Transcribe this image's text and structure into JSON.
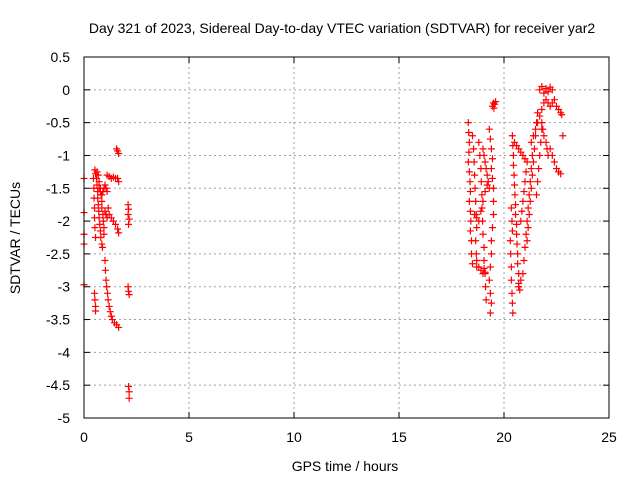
{
  "chart_data": {
    "type": "scatter",
    "title": "Day 321 of 2023, Sidereal Day-to-day VTEC variation (SDTVAR) for receiver yar2",
    "xlabel": "GPS time / hours",
    "ylabel": "SDTVAR / TECUs",
    "xlim": [
      0,
      25
    ],
    "ylim": [
      -5,
      0.5
    ],
    "xticks": [
      0,
      5,
      10,
      15,
      20,
      25
    ],
    "yticks": [
      0.5,
      0,
      -0.5,
      -1,
      -1.5,
      -2,
      -2.5,
      -3,
      -3.5,
      -4,
      -4.5,
      -5
    ],
    "grid": true,
    "marker": "plus",
    "color": "#ff0000",
    "series": [
      {
        "name": "SDTVAR",
        "points": [
          [
            0.0,
            -1.35
          ],
          [
            0.0,
            -1.87
          ],
          [
            0.0,
            -2.2
          ],
          [
            0.0,
            -2.35
          ],
          [
            0.0,
            -2.97
          ],
          [
            0.45,
            -1.35
          ],
          [
            0.47,
            -1.5
          ],
          [
            0.48,
            -1.65
          ],
          [
            0.5,
            -1.8
          ],
          [
            0.5,
            -1.95
          ],
          [
            0.52,
            -2.1
          ],
          [
            0.55,
            -2.25
          ],
          [
            0.5,
            -3.1
          ],
          [
            0.52,
            -3.2
          ],
          [
            0.55,
            -3.3
          ],
          [
            0.55,
            -3.37
          ],
          [
            0.52,
            -1.22
          ],
          [
            0.55,
            -1.28
          ],
          [
            0.6,
            -1.35
          ],
          [
            0.62,
            -1.45
          ],
          [
            0.65,
            -1.55
          ],
          [
            0.65,
            -1.65
          ],
          [
            0.68,
            -1.75
          ],
          [
            0.7,
            -1.85
          ],
          [
            0.72,
            -1.95
          ],
          [
            0.75,
            -2.05
          ],
          [
            0.78,
            -2.15
          ],
          [
            0.8,
            -2.25
          ],
          [
            0.85,
            -2.35
          ],
          [
            0.88,
            -2.4
          ],
          [
            0.62,
            -1.25
          ],
          [
            0.68,
            -1.3
          ],
          [
            0.72,
            -1.4
          ],
          [
            0.78,
            -1.5
          ],
          [
            0.82,
            -1.6
          ],
          [
            0.85,
            -1.7
          ],
          [
            0.85,
            -1.8
          ],
          [
            0.9,
            -1.9
          ],
          [
            0.92,
            -2.0
          ],
          [
            0.95,
            -2.1
          ],
          [
            0.95,
            -2.2
          ],
          [
            0.72,
            -1.5
          ],
          [
            0.78,
            -1.55
          ],
          [
            0.85,
            -1.6
          ],
          [
            0.9,
            -1.55
          ],
          [
            0.95,
            -1.5
          ],
          [
            1.0,
            -1.45
          ],
          [
            1.05,
            -1.5
          ],
          [
            1.1,
            -1.55
          ],
          [
            1.0,
            -2.6
          ],
          [
            1.02,
            -2.75
          ],
          [
            1.05,
            -2.9
          ],
          [
            1.08,
            -3.0
          ],
          [
            1.12,
            -3.1
          ],
          [
            1.15,
            -3.2
          ],
          [
            1.2,
            -3.3
          ],
          [
            1.25,
            -3.38
          ],
          [
            1.3,
            -3.45
          ],
          [
            1.35,
            -3.5
          ],
          [
            1.45,
            -3.55
          ],
          [
            1.55,
            -3.58
          ],
          [
            1.65,
            -3.62
          ],
          [
            1.1,
            -1.3
          ],
          [
            1.2,
            -1.32
          ],
          [
            1.3,
            -1.35
          ],
          [
            1.4,
            -1.33
          ],
          [
            1.5,
            -1.35
          ],
          [
            1.6,
            -1.35
          ],
          [
            1.65,
            -1.4
          ],
          [
            1.15,
            -1.8
          ],
          [
            1.2,
            -1.9
          ],
          [
            1.3,
            -1.95
          ],
          [
            1.4,
            -2.0
          ],
          [
            1.5,
            -2.05
          ],
          [
            1.6,
            -2.12
          ],
          [
            1.65,
            -2.18
          ],
          [
            1.0,
            -1.85
          ],
          [
            1.05,
            -1.9
          ],
          [
            1.1,
            -1.95
          ],
          [
            1.55,
            -0.9
          ],
          [
            1.6,
            -0.93
          ],
          [
            1.65,
            -0.97
          ],
          [
            2.1,
            -1.75
          ],
          [
            2.12,
            -1.82
          ],
          [
            2.1,
            -1.9
          ],
          [
            2.15,
            -1.97
          ],
          [
            2.12,
            -2.05
          ],
          [
            2.1,
            -3.0
          ],
          [
            2.12,
            -3.07
          ],
          [
            2.15,
            -3.12
          ],
          [
            2.12,
            -4.52
          ],
          [
            2.15,
            -4.6
          ],
          [
            2.15,
            -4.7
          ],
          [
            18.3,
            -0.5
          ],
          [
            18.32,
            -0.65
          ],
          [
            18.35,
            -0.8
          ],
          [
            18.33,
            -0.95
          ],
          [
            18.3,
            -1.1
          ],
          [
            18.35,
            -1.25
          ],
          [
            18.38,
            -1.4
          ],
          [
            18.4,
            -1.55
          ],
          [
            18.35,
            -1.7
          ],
          [
            18.4,
            -1.85
          ],
          [
            18.42,
            -2.0
          ],
          [
            18.4,
            -2.15
          ],
          [
            18.45,
            -2.3
          ],
          [
            18.45,
            -2.5
          ],
          [
            18.5,
            -2.65
          ],
          [
            18.5,
            -0.7
          ],
          [
            18.55,
            -0.9
          ],
          [
            18.58,
            -1.1
          ],
          [
            18.6,
            -1.3
          ],
          [
            18.62,
            -1.5
          ],
          [
            18.65,
            -1.7
          ],
          [
            18.68,
            -1.9
          ],
          [
            18.7,
            -2.1
          ],
          [
            18.65,
            -2.3
          ],
          [
            18.68,
            -2.5
          ],
          [
            18.7,
            -2.7
          ],
          [
            18.7,
            -2.6
          ],
          [
            18.8,
            -2.7
          ],
          [
            18.9,
            -2.75
          ],
          [
            19.0,
            -2.8
          ],
          [
            19.05,
            -2.72
          ],
          [
            19.1,
            -2.78
          ],
          [
            18.8,
            -0.8
          ],
          [
            18.85,
            -1.0
          ],
          [
            18.9,
            -1.2
          ],
          [
            18.92,
            -1.4
          ],
          [
            18.95,
            -1.6
          ],
          [
            18.95,
            -1.8
          ],
          [
            18.98,
            -2.0
          ],
          [
            19.0,
            -2.2
          ],
          [
            19.05,
            -2.4
          ],
          [
            19.05,
            -2.6
          ],
          [
            19.1,
            -2.8
          ],
          [
            19.12,
            -3.0
          ],
          [
            19.15,
            -3.2
          ],
          [
            19.0,
            -0.9
          ],
          [
            19.05,
            -1.0
          ],
          [
            19.1,
            -1.1
          ],
          [
            19.15,
            -1.2
          ],
          [
            19.2,
            -1.3
          ],
          [
            19.25,
            -1.4
          ],
          [
            19.3,
            -1.5
          ],
          [
            19.3,
            -0.6
          ],
          [
            19.35,
            -0.75
          ],
          [
            19.4,
            -0.9
          ],
          [
            19.45,
            -1.05
          ],
          [
            19.4,
            -1.2
          ],
          [
            19.45,
            -1.35
          ],
          [
            19.5,
            -1.5
          ],
          [
            19.5,
            -1.7
          ],
          [
            19.5,
            -1.9
          ],
          [
            19.45,
            -2.1
          ],
          [
            19.4,
            -2.3
          ],
          [
            19.4,
            -2.5
          ],
          [
            19.35,
            -2.7
          ],
          [
            19.3,
            -2.9
          ],
          [
            19.35,
            -3.1
          ],
          [
            19.4,
            -3.25
          ],
          [
            19.35,
            -3.4
          ],
          [
            19.45,
            -0.25
          ],
          [
            19.5,
            -0.2
          ],
          [
            19.55,
            -0.22
          ],
          [
            19.6,
            -0.18
          ],
          [
            19.52,
            -0.28
          ],
          [
            18.6,
            -1.9
          ],
          [
            18.7,
            -1.95
          ],
          [
            18.8,
            -2.0
          ],
          [
            18.9,
            -1.85
          ],
          [
            19.0,
            -1.7
          ],
          [
            19.1,
            -1.55
          ],
          [
            19.2,
            -1.45
          ],
          [
            20.3,
            -2.3
          ],
          [
            20.32,
            -2.5
          ],
          [
            20.35,
            -2.7
          ],
          [
            20.35,
            -2.9
          ],
          [
            20.38,
            -3.1
          ],
          [
            20.4,
            -3.25
          ],
          [
            20.42,
            -3.4
          ],
          [
            20.35,
            -1.8
          ],
          [
            20.38,
            -2.0
          ],
          [
            20.4,
            -2.15
          ],
          [
            20.4,
            -0.7
          ],
          [
            20.42,
            -0.85
          ],
          [
            20.45,
            -1.0
          ],
          [
            20.45,
            -1.15
          ],
          [
            20.48,
            -1.3
          ],
          [
            20.5,
            -1.45
          ],
          [
            20.52,
            -1.6
          ],
          [
            20.55,
            -1.75
          ],
          [
            20.55,
            -1.9
          ],
          [
            20.6,
            -2.05
          ],
          [
            20.6,
            -2.2
          ],
          [
            20.62,
            -2.35
          ],
          [
            20.65,
            -2.5
          ],
          [
            20.65,
            -2.65
          ],
          [
            20.7,
            -2.8
          ],
          [
            20.7,
            -2.95
          ],
          [
            20.75,
            -3.05
          ],
          [
            20.5,
            -0.8
          ],
          [
            20.6,
            -0.85
          ],
          [
            20.7,
            -0.9
          ],
          [
            20.8,
            -0.95
          ],
          [
            20.9,
            -1.0
          ],
          [
            21.0,
            -1.05
          ],
          [
            20.7,
            -3.0
          ],
          [
            20.8,
            -2.9
          ],
          [
            20.9,
            -2.8
          ],
          [
            20.95,
            -2.6
          ],
          [
            21.0,
            -2.4
          ],
          [
            21.05,
            -2.2
          ],
          [
            21.1,
            -2.0
          ],
          [
            21.15,
            -1.8
          ],
          [
            21.2,
            -1.6
          ],
          [
            21.25,
            -1.4
          ],
          [
            21.3,
            -1.2
          ],
          [
            21.35,
            -1.0
          ],
          [
            20.8,
            -2.0
          ],
          [
            20.85,
            -1.85
          ],
          [
            20.9,
            -1.7
          ],
          [
            20.95,
            -1.55
          ],
          [
            21.0,
            -1.4
          ],
          [
            21.05,
            -1.25
          ],
          [
            21.1,
            -1.1
          ],
          [
            21.1,
            -2.3
          ],
          [
            21.15,
            -2.1
          ],
          [
            21.2,
            -1.9
          ],
          [
            21.25,
            -1.7
          ],
          [
            21.3,
            -1.5
          ],
          [
            21.35,
            -1.3
          ],
          [
            21.4,
            -1.1
          ],
          [
            21.45,
            -0.9
          ],
          [
            21.5,
            -0.7
          ],
          [
            21.55,
            -0.5
          ],
          [
            21.6,
            -0.35
          ],
          [
            21.3,
            -0.8
          ],
          [
            21.4,
            -0.7
          ],
          [
            21.5,
            -0.6
          ],
          [
            21.6,
            -0.5
          ],
          [
            21.7,
            -0.4
          ],
          [
            21.8,
            -0.3
          ],
          [
            21.55,
            -1.6
          ],
          [
            21.6,
            -1.4
          ],
          [
            21.65,
            -1.2
          ],
          [
            21.7,
            -1.0
          ],
          [
            21.75,
            -0.8
          ],
          [
            21.8,
            -0.6
          ],
          [
            21.7,
            0.0
          ],
          [
            21.8,
            0.05
          ],
          [
            21.9,
            -0.05
          ],
          [
            22.0,
            0.02
          ],
          [
            22.1,
            -0.03
          ],
          [
            22.2,
            0.04
          ],
          [
            22.3,
            0.0
          ],
          [
            21.9,
            -0.2
          ],
          [
            22.0,
            -0.15
          ],
          [
            22.1,
            -0.2
          ],
          [
            22.2,
            -0.25
          ],
          [
            22.3,
            -0.2
          ],
          [
            22.4,
            -0.15
          ],
          [
            22.5,
            -0.25
          ],
          [
            22.6,
            -0.3
          ],
          [
            22.7,
            -0.35
          ],
          [
            22.75,
            -0.38
          ],
          [
            21.8,
            -0.5
          ],
          [
            21.85,
            -0.6
          ],
          [
            21.9,
            -0.7
          ],
          [
            22.0,
            -0.8
          ],
          [
            22.05,
            -0.9
          ],
          [
            22.1,
            -1.0
          ],
          [
            22.2,
            -0.9
          ],
          [
            22.3,
            -1.0
          ],
          [
            22.4,
            -1.1
          ],
          [
            22.5,
            -1.2
          ],
          [
            22.6,
            -1.25
          ],
          [
            22.7,
            -1.28
          ],
          [
            22.8,
            -0.7
          ]
        ]
      }
    ]
  }
}
